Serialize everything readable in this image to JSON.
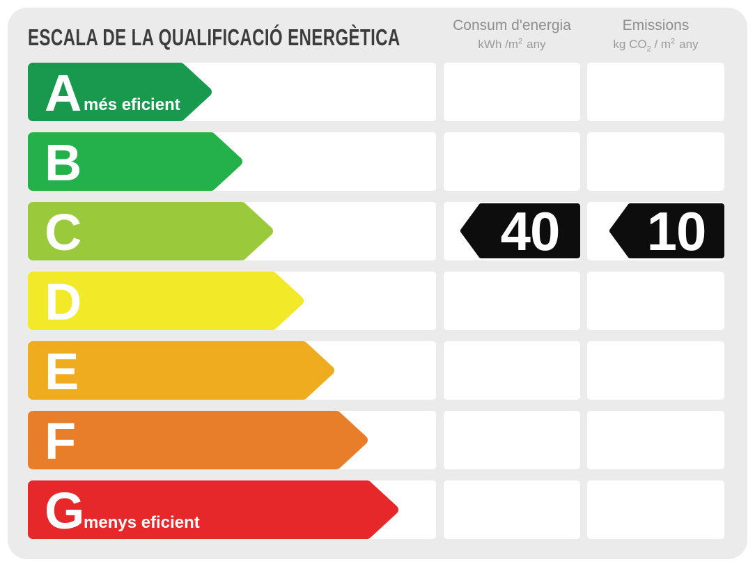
{
  "title": "ESCALA DE LA QUALIFICACIÓ ENERGÈTICA",
  "columns": {
    "consum": {
      "label": "Consum d'energia",
      "unit_base": "kWh /m",
      "unit_sup": "2",
      "unit_tail": "any"
    },
    "emissions": {
      "label": "Emissions",
      "unit_base": "kg CO",
      "unit_sub": "2",
      "unit_mid": " / m",
      "unit_sup": "2",
      "unit_tail": "any"
    }
  },
  "rows": [
    {
      "letter": "A",
      "label": "més eficient",
      "color": "#18994E",
      "tip": 264
    },
    {
      "letter": "B",
      "label": "",
      "color": "#24B14B",
      "tip": 308
    },
    {
      "letter": "C",
      "label": "",
      "color": "#9ACA3B",
      "tip": 352
    },
    {
      "letter": "D",
      "label": "",
      "color": "#F2E928",
      "tip": 396
    },
    {
      "letter": "E",
      "label": "",
      "color": "#EFAC1E",
      "tip": 440
    },
    {
      "letter": "F",
      "label": "",
      "color": "#E87D2A",
      "tip": 488
    },
    {
      "letter": "G",
      "label": "menys eficient",
      "color": "#E6282B",
      "tip": 532
    }
  ],
  "values": {
    "consum": "40",
    "emissions": "10",
    "rating_row": "C"
  },
  "badge_color": "#0D0D0D",
  "panel_color": "#ECEBEB",
  "chart_data": {
    "type": "energy-rating-scale",
    "title": "ESCALA DE LA QUALIFICACIÓ ENERGÈTICA",
    "categories": [
      "A",
      "B",
      "C",
      "D",
      "E",
      "F",
      "G"
    ],
    "category_colors": [
      "#18994E",
      "#24B14B",
      "#9ACA3B",
      "#F2E928",
      "#EFAC1E",
      "#E87D2A",
      "#E6282B"
    ],
    "annotations": {
      "A": "més eficient",
      "G": "menys eficient"
    },
    "rating": "C",
    "series": [
      {
        "name": "Consum d'energia (kWh/m2 any)",
        "category": "C",
        "value": 40
      },
      {
        "name": "Emissions (kg CO2/m2 any)",
        "category": "C",
        "value": 10
      }
    ],
    "legend_position": "none",
    "grid": false
  }
}
